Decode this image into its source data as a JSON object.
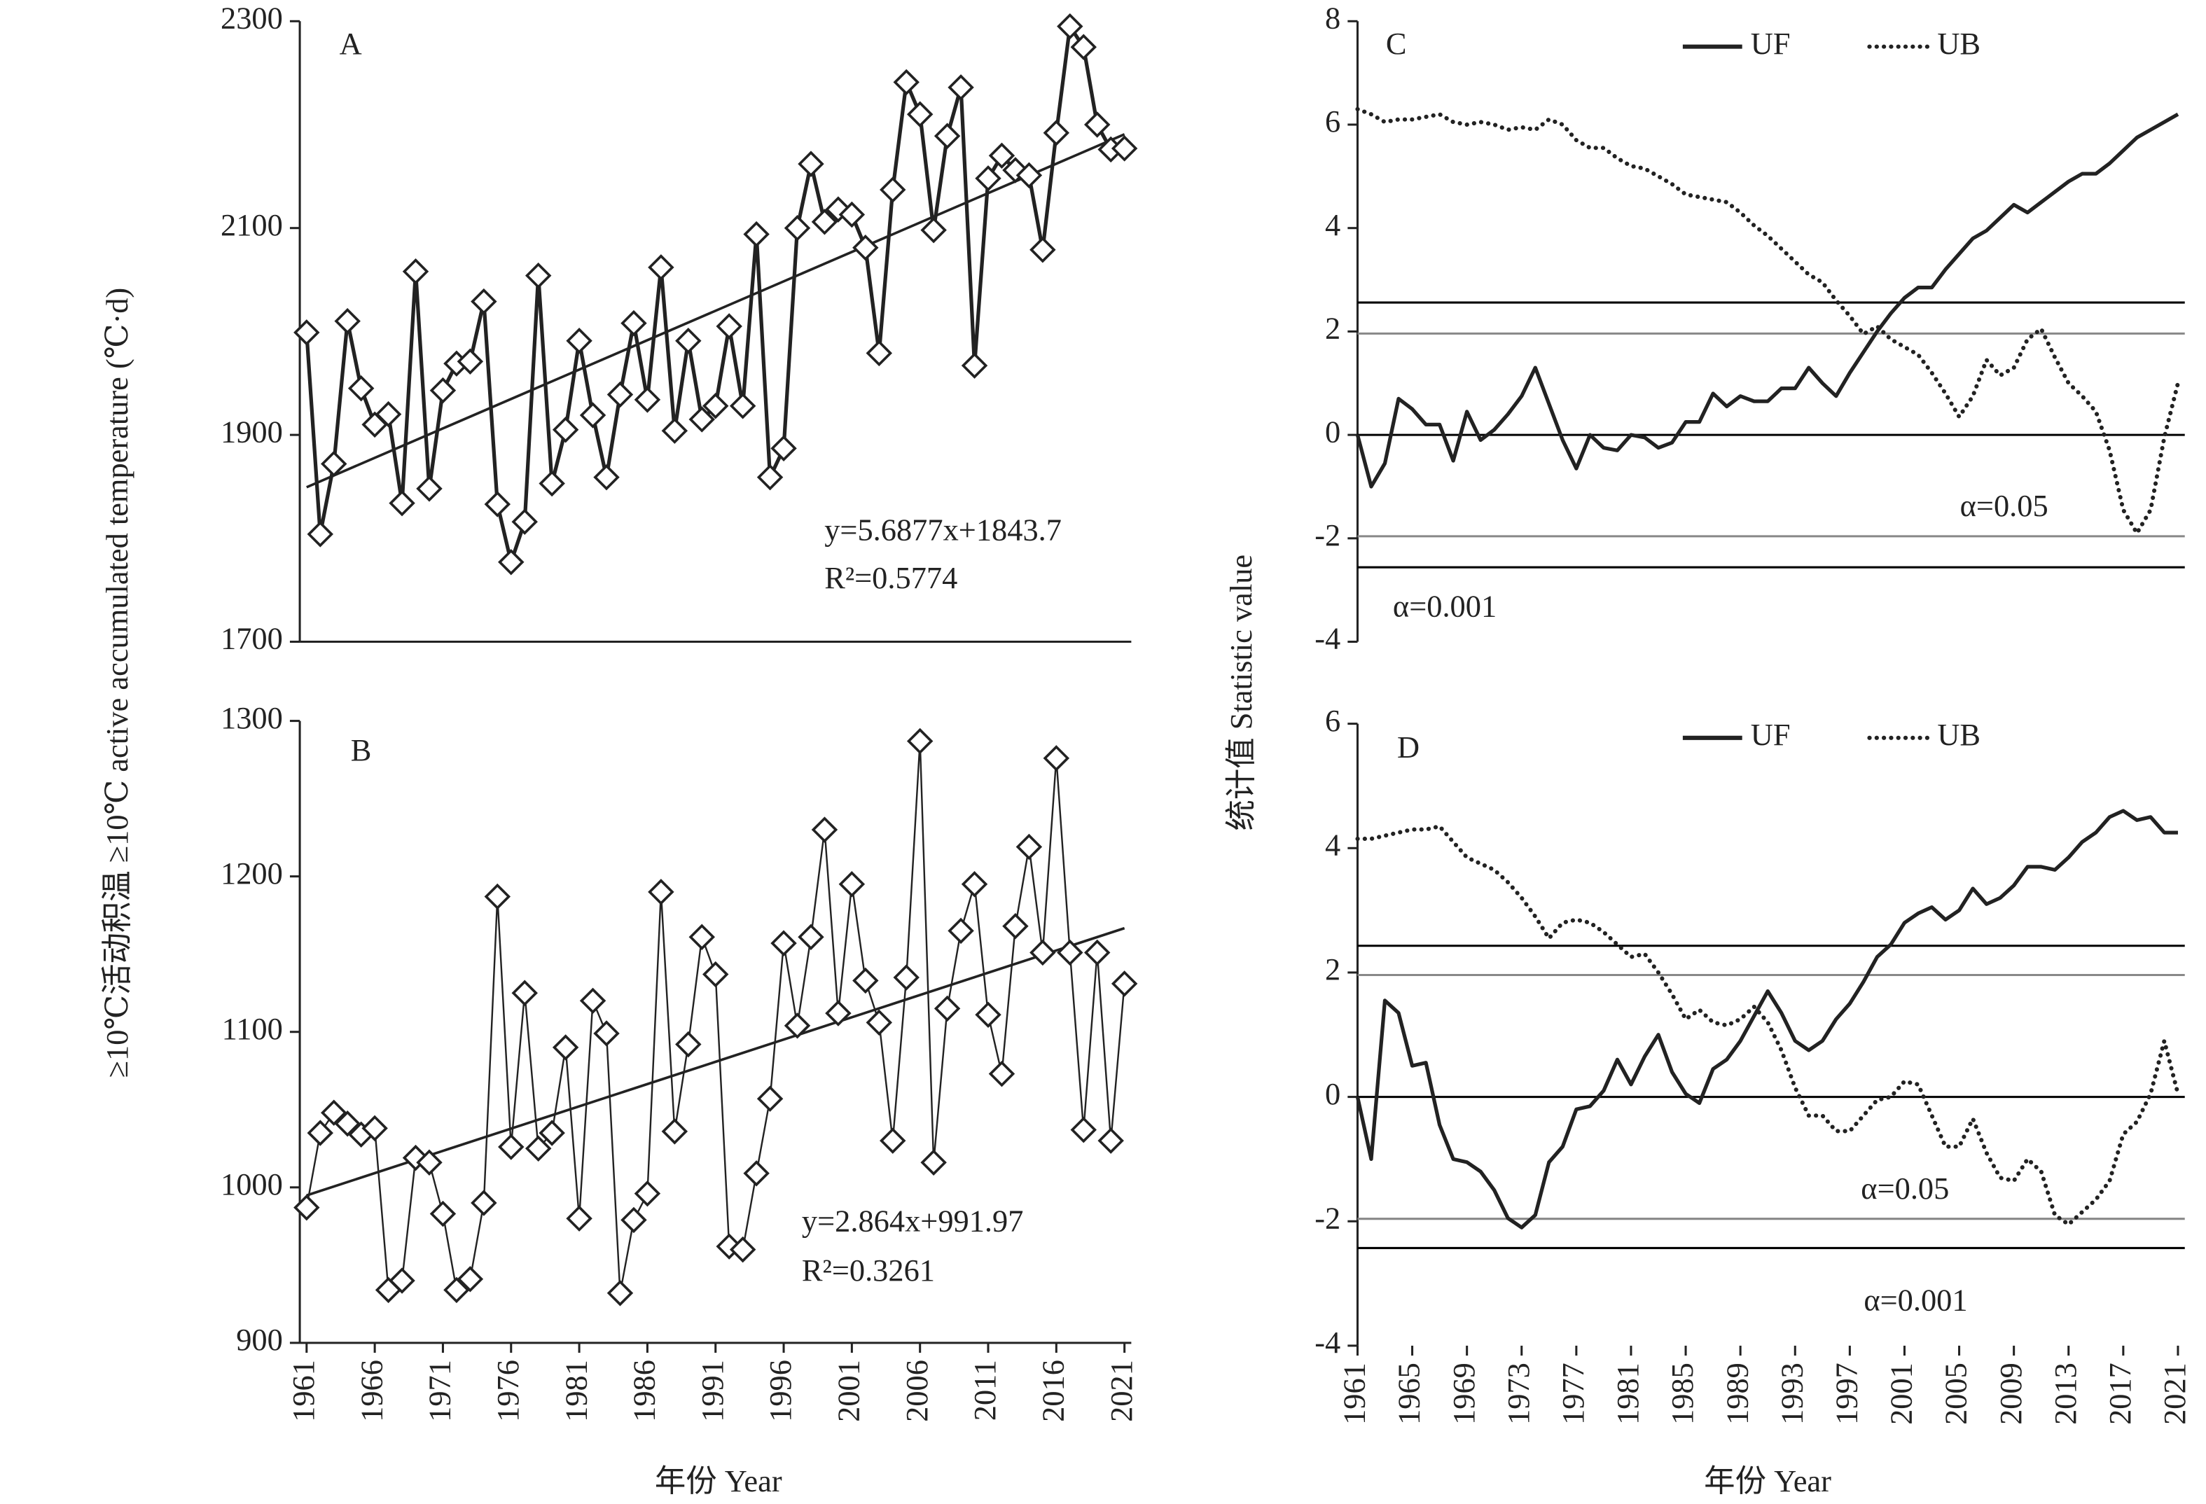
{
  "chart_data": [
    {
      "type": "line",
      "panel_label": "A",
      "markers": "diamond",
      "ylabel": "≥10℃活动积温 ≥10℃ active accumulated temperature (℃·d)",
      "x": [
        1961,
        1962,
        1963,
        1964,
        1965,
        1966,
        1967,
        1968,
        1969,
        1970,
        1971,
        1972,
        1973,
        1974,
        1975,
        1976,
        1977,
        1978,
        1979,
        1980,
        1981,
        1982,
        1983,
        1984,
        1985,
        1986,
        1987,
        1988,
        1989,
        1990,
        1991,
        1992,
        1993,
        1994,
        1995,
        1996,
        1997,
        1998,
        1999,
        2000,
        2001,
        2002,
        2003,
        2004,
        2005,
        2006,
        2007,
        2008,
        2009,
        2010,
        2011,
        2012,
        2013,
        2014,
        2015,
        2016,
        2017,
        2018,
        2019,
        2020,
        2021
      ],
      "series": [
        {
          "color": "#222222",
          "values": [
            1999,
            1804,
            1872,
            2010,
            1945,
            1910,
            1920,
            1834,
            2058,
            1848,
            1943,
            1969,
            1971,
            2029,
            1833,
            1777,
            1816,
            2054,
            1853,
            1905,
            1991,
            1919,
            1859,
            1939,
            2008,
            1934,
            2062,
            1904,
            1991,
            1915,
            1928,
            2005,
            1928,
            2094,
            1859,
            1887,
            2100,
            2162,
            2106,
            2118,
            2113,
            2081,
            1979,
            2137,
            2241,
            2210,
            2098,
            2189,
            2236,
            1967,
            2148,
            2170,
            2156,
            2151,
            2079,
            2192,
            2295,
            2275,
            2200,
            2176,
            2177
          ]
        }
      ],
      "trend": {
        "slope": 5.6877,
        "intercept": 1843.7
      },
      "annotations": [
        "y=5.6877x+1843.7",
        "R²=0.5774"
      ],
      "xlim": [
        1960.5,
        2021.5
      ],
      "ylim": [
        1700,
        2300
      ],
      "yticks": [
        1700,
        1900,
        2100,
        2300
      ]
    },
    {
      "type": "line",
      "panel_label": "B",
      "markers": "diamond",
      "xlabel": "年份 Year",
      "x": [
        1961,
        1962,
        1963,
        1964,
        1965,
        1966,
        1967,
        1968,
        1969,
        1970,
        1971,
        1972,
        1973,
        1974,
        1975,
        1976,
        1977,
        1978,
        1979,
        1980,
        1981,
        1982,
        1983,
        1984,
        1985,
        1986,
        1987,
        1988,
        1989,
        1990,
        1991,
        1992,
        1993,
        1994,
        1995,
        1996,
        1997,
        1998,
        1999,
        2000,
        2001,
        2002,
        2003,
        2004,
        2005,
        2006,
        2007,
        2008,
        2009,
        2010,
        2011,
        2012,
        2013,
        2014,
        2015,
        2016,
        2017,
        2018,
        2019,
        2020,
        2021
      ],
      "series": [
        {
          "color": "#222222",
          "values": [
            987,
            1035,
            1048,
            1041,
            1034,
            1038,
            934,
            940,
            1019,
            1016,
            983,
            934,
            941,
            990,
            1187,
            1026,
            1125,
            1025,
            1035,
            1090,
            980,
            1120,
            1099,
            932,
            979,
            996,
            1190,
            1036,
            1092,
            1161,
            1137,
            962,
            960,
            1009,
            1057,
            1157,
            1104,
            1161,
            1230,
            1112,
            1195,
            1133,
            1106,
            1030,
            1135,
            1287,
            1016,
            1115,
            1165,
            1195,
            1111,
            1073,
            1168,
            1219,
            1151,
            1276,
            1151,
            1037,
            1151,
            1030,
            1131
          ]
        }
      ],
      "trend": {
        "slope": 2.864,
        "intercept": 991.97
      },
      "annotations": [
        "y=2.864x+991.97",
        "R²=0.3261"
      ],
      "xlim": [
        1960.5,
        2021.5
      ],
      "xticks": [
        1961,
        1966,
        1971,
        1976,
        1981,
        1986,
        1991,
        1996,
        2001,
        2006,
        2011,
        2016,
        2021
      ],
      "ylim": [
        900,
        1300
      ],
      "yticks": [
        900,
        1000,
        1100,
        1200,
        1300
      ]
    },
    {
      "type": "line",
      "panel_label": "C",
      "ylabel": "统计值 Statistic value",
      "legend": "upper right",
      "x": [
        1961,
        1962,
        1963,
        1964,
        1965,
        1966,
        1967,
        1968,
        1969,
        1970,
        1971,
        1972,
        1973,
        1974,
        1975,
        1976,
        1977,
        1978,
        1979,
        1980,
        1981,
        1982,
        1983,
        1984,
        1985,
        1986,
        1987,
        1988,
        1989,
        1990,
        1991,
        1992,
        1993,
        1994,
        1995,
        1996,
        1997,
        1998,
        1999,
        2000,
        2001,
        2002,
        2003,
        2004,
        2005,
        2006,
        2007,
        2008,
        2009,
        2010,
        2011,
        2012,
        2013,
        2014,
        2015,
        2016,
        2017,
        2018,
        2019,
        2020,
        2021
      ],
      "series": [
        {
          "name": "UF",
          "color": "#222222",
          "dash": "solid",
          "values": [
            0,
            -1.0,
            -0.55,
            0.7,
            0.5,
            0.2,
            0.2,
            -0.5,
            0.45,
            -0.1,
            0.1,
            0.4,
            0.75,
            1.3,
            0.6,
            -0.1,
            -0.65,
            0,
            -0.25,
            -0.3,
            0,
            -0.05,
            -0.25,
            -0.15,
            0.25,
            0.25,
            0.8,
            0.55,
            0.75,
            0.65,
            0.65,
            0.9,
            0.9,
            1.3,
            1.0,
            0.75,
            1.2,
            1.6,
            2.0,
            2.35,
            2.65,
            2.85,
            2.85,
            3.2,
            3.5,
            3.8,
            3.95,
            4.2,
            4.45,
            4.3,
            4.5,
            4.7,
            4.9,
            5.05,
            5.05,
            5.25,
            5.5,
            5.75,
            5.9,
            6.05,
            6.2
          ]
        },
        {
          "name": "UB",
          "color": "#222222",
          "dash": "dotted",
          "values": [
            6.3,
            6.2,
            6.05,
            6.1,
            6.1,
            6.15,
            6.2,
            6.05,
            6.0,
            6.05,
            6.0,
            5.9,
            5.95,
            5.9,
            6.1,
            6.0,
            5.7,
            5.55,
            5.55,
            5.35,
            5.2,
            5.15,
            5.0,
            4.85,
            4.65,
            4.6,
            4.55,
            4.5,
            4.3,
            4.05,
            3.85,
            3.6,
            3.35,
            3.1,
            2.95,
            2.6,
            2.3,
            1.95,
            2.1,
            1.85,
            1.7,
            1.55,
            1.2,
            0.8,
            0.35,
            0.75,
            1.45,
            1.15,
            1.3,
            1.85,
            2.05,
            1.5,
            1.0,
            0.75,
            0.45,
            -0.3,
            -1.45,
            -1.9,
            -1.45,
            -0.05,
            1.0
          ]
        }
      ],
      "ref_lines": [
        {
          "value": 0,
          "color": "#000000"
        },
        {
          "value": 2.56,
          "color": "#000000"
        },
        {
          "value": -2.56,
          "color": "#000000"
        },
        {
          "value": 1.96,
          "color": "#888888"
        },
        {
          "value": -1.96,
          "color": "#888888"
        }
      ],
      "annotations": [
        "α=0.05",
        "α=0.001"
      ],
      "xlim": [
        1961,
        2021.5
      ],
      "ylim": [
        -4,
        8
      ],
      "yticks": [
        -4,
        -2,
        0,
        2,
        4,
        6,
        8
      ]
    },
    {
      "type": "line",
      "panel_label": "D",
      "xlabel": "年份 Year",
      "legend": "upper right",
      "x": [
        1961,
        1962,
        1963,
        1964,
        1965,
        1966,
        1967,
        1968,
        1969,
        1970,
        1971,
        1972,
        1973,
        1974,
        1975,
        1976,
        1977,
        1978,
        1979,
        1980,
        1981,
        1982,
        1983,
        1984,
        1985,
        1986,
        1987,
        1988,
        1989,
        1990,
        1991,
        1992,
        1993,
        1994,
        1995,
        1996,
        1997,
        1998,
        1999,
        2000,
        2001,
        2002,
        2003,
        2004,
        2005,
        2006,
        2007,
        2008,
        2009,
        2010,
        2011,
        2012,
        2013,
        2014,
        2015,
        2016,
        2017,
        2018,
        2019,
        2020,
        2021
      ],
      "series": [
        {
          "name": "UF",
          "color": "#222222",
          "dash": "solid",
          "values": [
            0,
            -1.0,
            1.55,
            1.35,
            0.5,
            0.55,
            -0.45,
            -1.0,
            -1.05,
            -1.2,
            -1.5,
            -1.95,
            -2.1,
            -1.9,
            -1.05,
            -0.8,
            -0.2,
            -0.15,
            0.1,
            0.6,
            0.2,
            0.65,
            1.0,
            0.4,
            0.05,
            -0.1,
            0.45,
            0.6,
            0.9,
            1.3,
            1.7,
            1.35,
            0.9,
            0.75,
            0.9,
            1.25,
            1.5,
            1.85,
            2.25,
            2.45,
            2.8,
            2.95,
            3.05,
            2.85,
            3.0,
            3.35,
            3.1,
            3.2,
            3.4,
            3.7,
            3.7,
            3.65,
            3.85,
            4.1,
            4.25,
            4.5,
            4.6,
            4.45,
            4.5,
            4.25,
            4.25
          ]
        },
        {
          "name": "UB",
          "color": "#222222",
          "dash": "dotted",
          "values": [
            4.15,
            4.15,
            4.2,
            4.25,
            4.3,
            4.3,
            4.35,
            4.1,
            3.85,
            3.75,
            3.65,
            3.45,
            3.2,
            2.9,
            2.55,
            2.8,
            2.85,
            2.8,
            2.65,
            2.45,
            2.25,
            2.3,
            2.0,
            1.65,
            1.25,
            1.4,
            1.2,
            1.15,
            1.25,
            1.45,
            1.2,
            0.75,
            0.15,
            -0.3,
            -0.3,
            -0.55,
            -0.55,
            -0.3,
            -0.05,
            0.0,
            0.25,
            0.2,
            -0.3,
            -0.8,
            -0.8,
            -0.35,
            -0.9,
            -1.3,
            -1.35,
            -1.0,
            -1.2,
            -1.9,
            -2.05,
            -1.85,
            -1.65,
            -1.35,
            -0.6,
            -0.4,
            0.05,
            0.9,
            0.05
          ]
        }
      ],
      "ref_lines": [
        {
          "value": 0,
          "color": "#000000"
        },
        {
          "value": 2.43,
          "color": "#000000"
        },
        {
          "value": -2.43,
          "color": "#000000"
        },
        {
          "value": 1.96,
          "color": "#888888"
        },
        {
          "value": -1.96,
          "color": "#888888"
        }
      ],
      "annotations": [
        "α=0.05",
        "α=0.001"
      ],
      "xlim": [
        1961,
        2021.5
      ],
      "xticks": [
        1961,
        1965,
        1969,
        1973,
        1977,
        1981,
        1985,
        1989,
        1993,
        1997,
        2001,
        2005,
        2009,
        2013,
        2017,
        2021
      ],
      "ylim": [
        -4,
        6
      ],
      "yticks": [
        -4,
        -2,
        0,
        2,
        4,
        6
      ]
    }
  ]
}
